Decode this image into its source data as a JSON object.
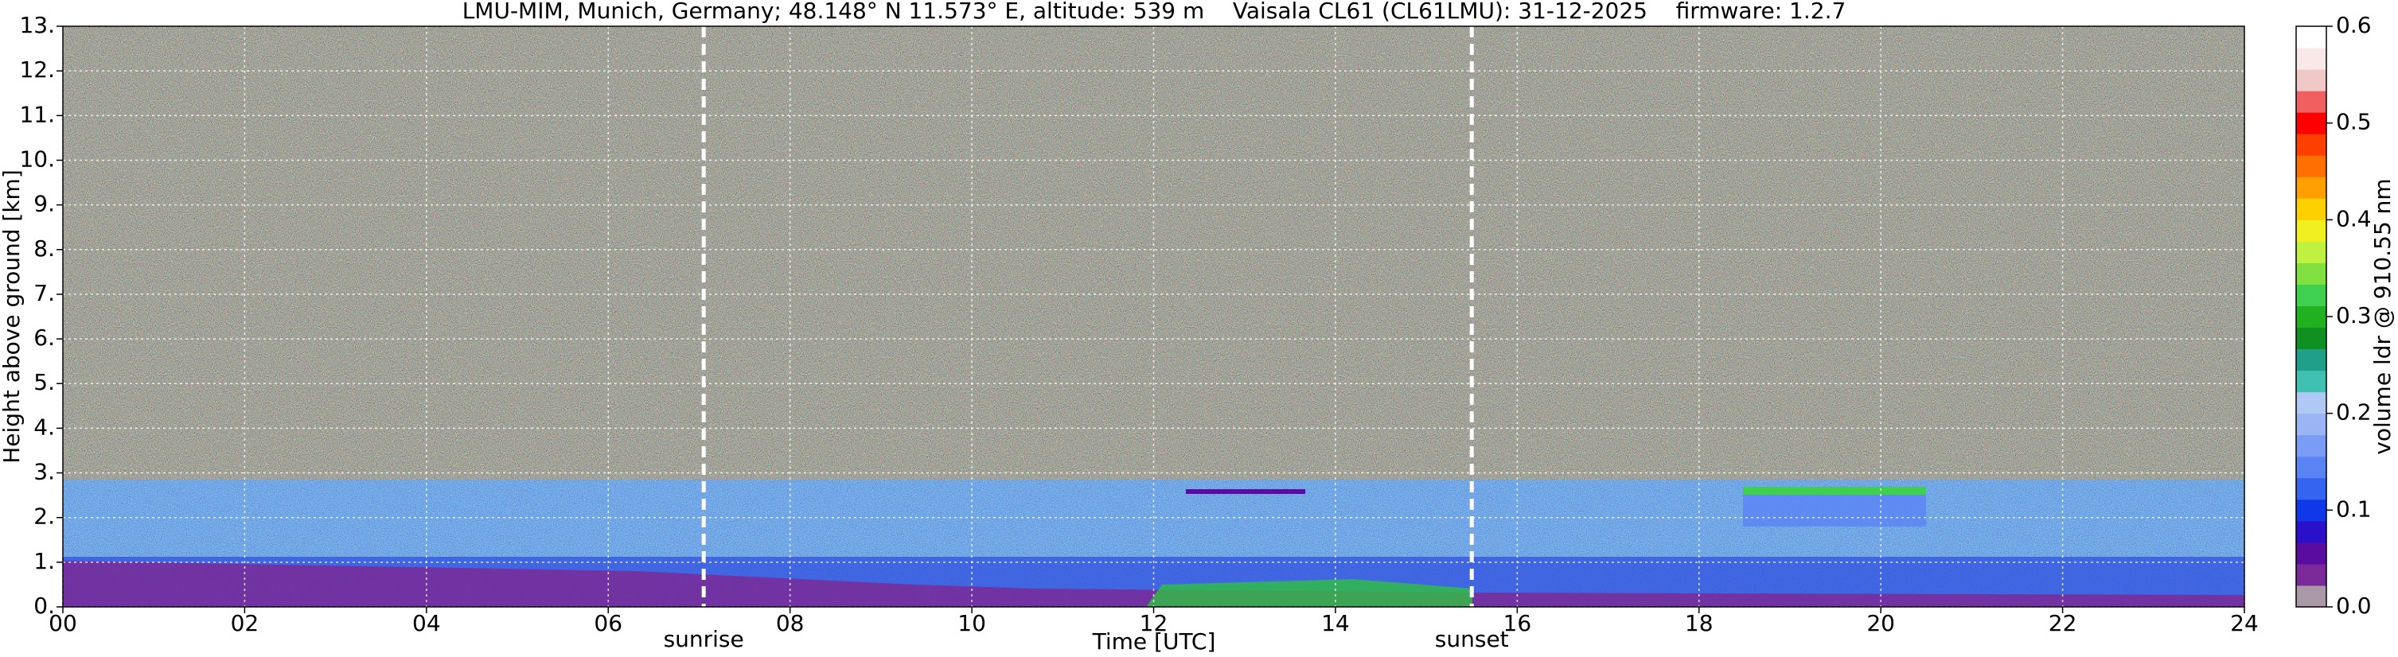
{
  "chart_data": {
    "type": "heatmap",
    "title": "LMU-MIM, Munich, Germany; 48.148° N 11.573° E, altitude: 539 m    Vaisala CL61 (CL61LMU): 31-12-2025    firmware: 1.2.7",
    "x_label": "Time [UTC]",
    "y_label": "Height above ground [km]",
    "colorbar_label": "volume ldr @ 910.55 nm",
    "xlim": [
      0,
      24
    ],
    "xticks": [
      {
        "value": 0,
        "label": "00"
      },
      {
        "value": 2,
        "label": "02"
      },
      {
        "value": 4,
        "label": "04"
      },
      {
        "value": 6,
        "label": "06"
      },
      {
        "value": 8,
        "label": "08"
      },
      10,
      12,
      14,
      16,
      18,
      20,
      22,
      24
    ],
    "ylim": [
      0,
      13
    ],
    "yticks": [
      {
        "value": 0,
        "label": "0."
      },
      {
        "value": 1,
        "label": "1."
      },
      {
        "value": 2,
        "label": "2."
      },
      {
        "value": 3,
        "label": "3."
      },
      {
        "value": 4,
        "label": "4."
      },
      {
        "value": 5,
        "label": "5."
      },
      {
        "value": 6,
        "label": "6."
      },
      {
        "value": 7,
        "label": "7."
      },
      {
        "value": 8,
        "label": "8."
      },
      {
        "value": 9,
        "label": "9."
      },
      {
        "value": 10,
        "label": "10."
      },
      {
        "value": 11,
        "label": "11."
      },
      {
        "value": 12,
        "label": "12."
      },
      {
        "value": 13,
        "label": "13."
      }
    ],
    "zlim": [
      0,
      0.6
    ],
    "zticks": [
      {
        "value": 0,
        "label": "0.0"
      },
      0.1,
      0.2,
      0.3,
      0.4,
      0.5,
      0.6
    ],
    "colors": [
      "#a898a8",
      "#7a2a98",
      "#5a0ca0",
      "#2a10c8",
      "#1038e8",
      "#3464f0",
      "#5a84f4",
      "#7a9cf4",
      "#9ab4f4",
      "#b0c8f4",
      "#40c0b0",
      "#20a088",
      "#109020",
      "#20b020",
      "#40d050",
      "#80e040",
      "#c0f040",
      "#f0f020",
      "#ffd000",
      "#ffa000",
      "#ff7000",
      "#ff4000",
      "#ff0000",
      "#f06060",
      "#f0c8c8",
      "#f8e8e8",
      "#ffffff"
    ],
    "grid": true,
    "markers": [
      {
        "label": "sunrise",
        "x": 7.05
      },
      {
        "label": "sunset",
        "x": 15.5
      }
    ]
  }
}
